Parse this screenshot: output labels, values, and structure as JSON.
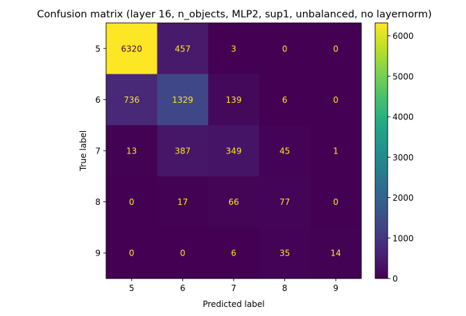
{
  "chart_data": {
    "type": "heatmap",
    "title": "Confusion matrix (layer 16, n_objects, MLP2, sup1, unbalanced, no layernorm)",
    "xlabel": "Predicted label",
    "ylabel": "True label",
    "x_categories": [
      "5",
      "6",
      "7",
      "8",
      "9"
    ],
    "y_categories": [
      "5",
      "6",
      "7",
      "8",
      "9"
    ],
    "values": [
      [
        6320,
        457,
        3,
        0,
        0
      ],
      [
        736,
        1329,
        139,
        6,
        0
      ],
      [
        13,
        387,
        349,
        45,
        1
      ],
      [
        0,
        17,
        66,
        77,
        0
      ],
      [
        0,
        0,
        6,
        35,
        14
      ]
    ],
    "colormap": "viridis",
    "colorbar": {
      "range": [
        0,
        6320
      ],
      "ticks": [
        0,
        1000,
        2000,
        3000,
        4000,
        5000,
        6000
      ],
      "tick_labels": [
        "0",
        "1000",
        "2000",
        "3000",
        "4000",
        "5000",
        "6000"
      ]
    },
    "text_colors": {
      "on_dark": "#fde725",
      "on_light": "#440154"
    }
  }
}
